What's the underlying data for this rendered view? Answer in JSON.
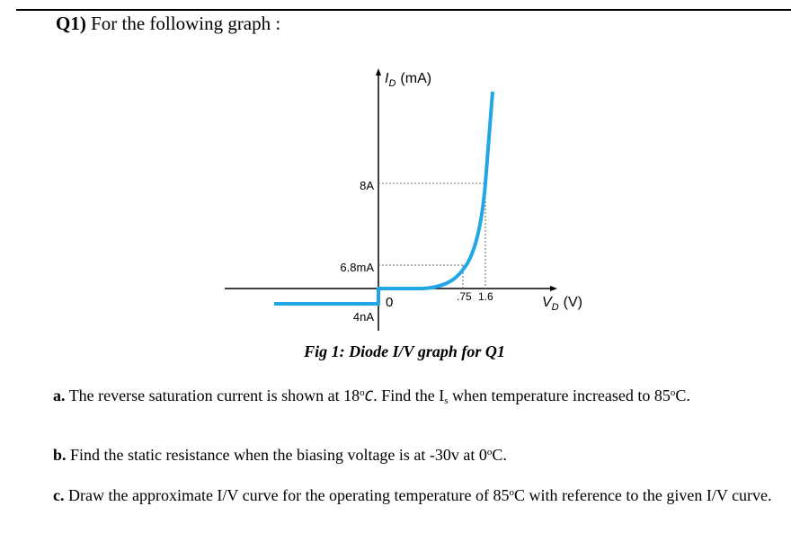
{
  "heading": {
    "number": "Q1)",
    "text": "For the following graph :"
  },
  "figure": {
    "y_axis_label": "I",
    "y_axis_subscript": "D",
    "y_axis_unit": "(mA)",
    "x_axis_label": "V",
    "x_axis_subscript": "D",
    "x_axis_unit": "(V)",
    "y_ticks": [
      "8A",
      "6.8mA",
      "4nA"
    ],
    "x_ticks": [
      "0",
      ".75",
      "1.6"
    ],
    "curve_color": "#22a7e6",
    "caption": "Fig 1: Diode I/V graph for Q1"
  },
  "questions": {
    "a": {
      "label": "a.",
      "text1": "The reverse saturation current is shown at 18",
      "deg1": "o",
      "unit_c": "C",
      "text2": ". Find the I",
      "sub_s": "s",
      "text3": " when temperature  increased to 85",
      "deg2": "o",
      "text4": "C."
    },
    "b": {
      "label": "b.",
      "text1": "Find the static resistance when the biasing voltage is at -30v at 0",
      "deg": "o",
      "text2": "C."
    },
    "c": {
      "label": "c.",
      "text1": "Draw the approximate I/V curve for the operating temperature of 85",
      "deg": "o",
      "text2": "C with reference to the given I/V curve."
    }
  }
}
